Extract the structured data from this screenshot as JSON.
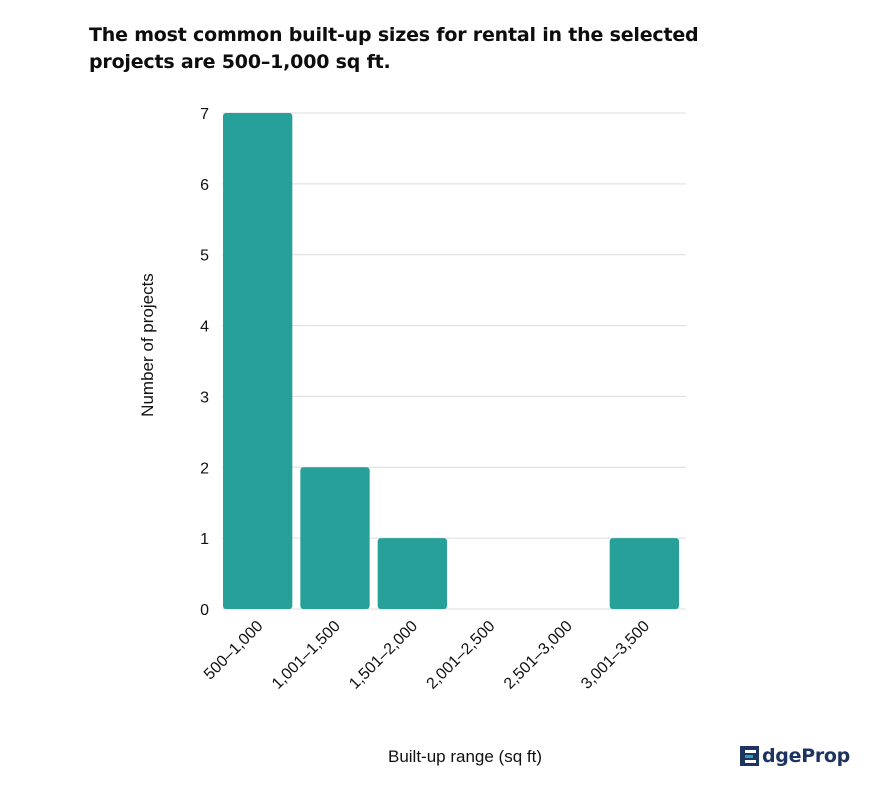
{
  "title": "The most common built-up sizes for rental in the selected projects are 500–1,000 sq ft.",
  "brand": {
    "logo_text_a": "dge",
    "logo_text_b": "Prop",
    "logo_icon": "edgeprop-e-logo-icon",
    "color_dark": "#1d3461",
    "color_accent": "#2a9fb3"
  },
  "chart_data": {
    "type": "bar",
    "title": "The most common built-up sizes for rental in the selected projects are 500–1,000 sq ft.",
    "xlabel": "Built-up range (sq ft)",
    "ylabel": "Number of projects",
    "categories": [
      "500–1,000",
      "1,001–1,500",
      "1,501–2,000",
      "2,001–2,500",
      "2,501–3,000",
      "3,001–3,500"
    ],
    "values": [
      7,
      2,
      1,
      0,
      0,
      1
    ],
    "ylim": [
      0,
      7
    ],
    "yticks": [
      0,
      1,
      2,
      3,
      4,
      5,
      6,
      7
    ],
    "grid": true,
    "bar_color": "#27a09a",
    "grid_color": "#dcdcdc"
  }
}
